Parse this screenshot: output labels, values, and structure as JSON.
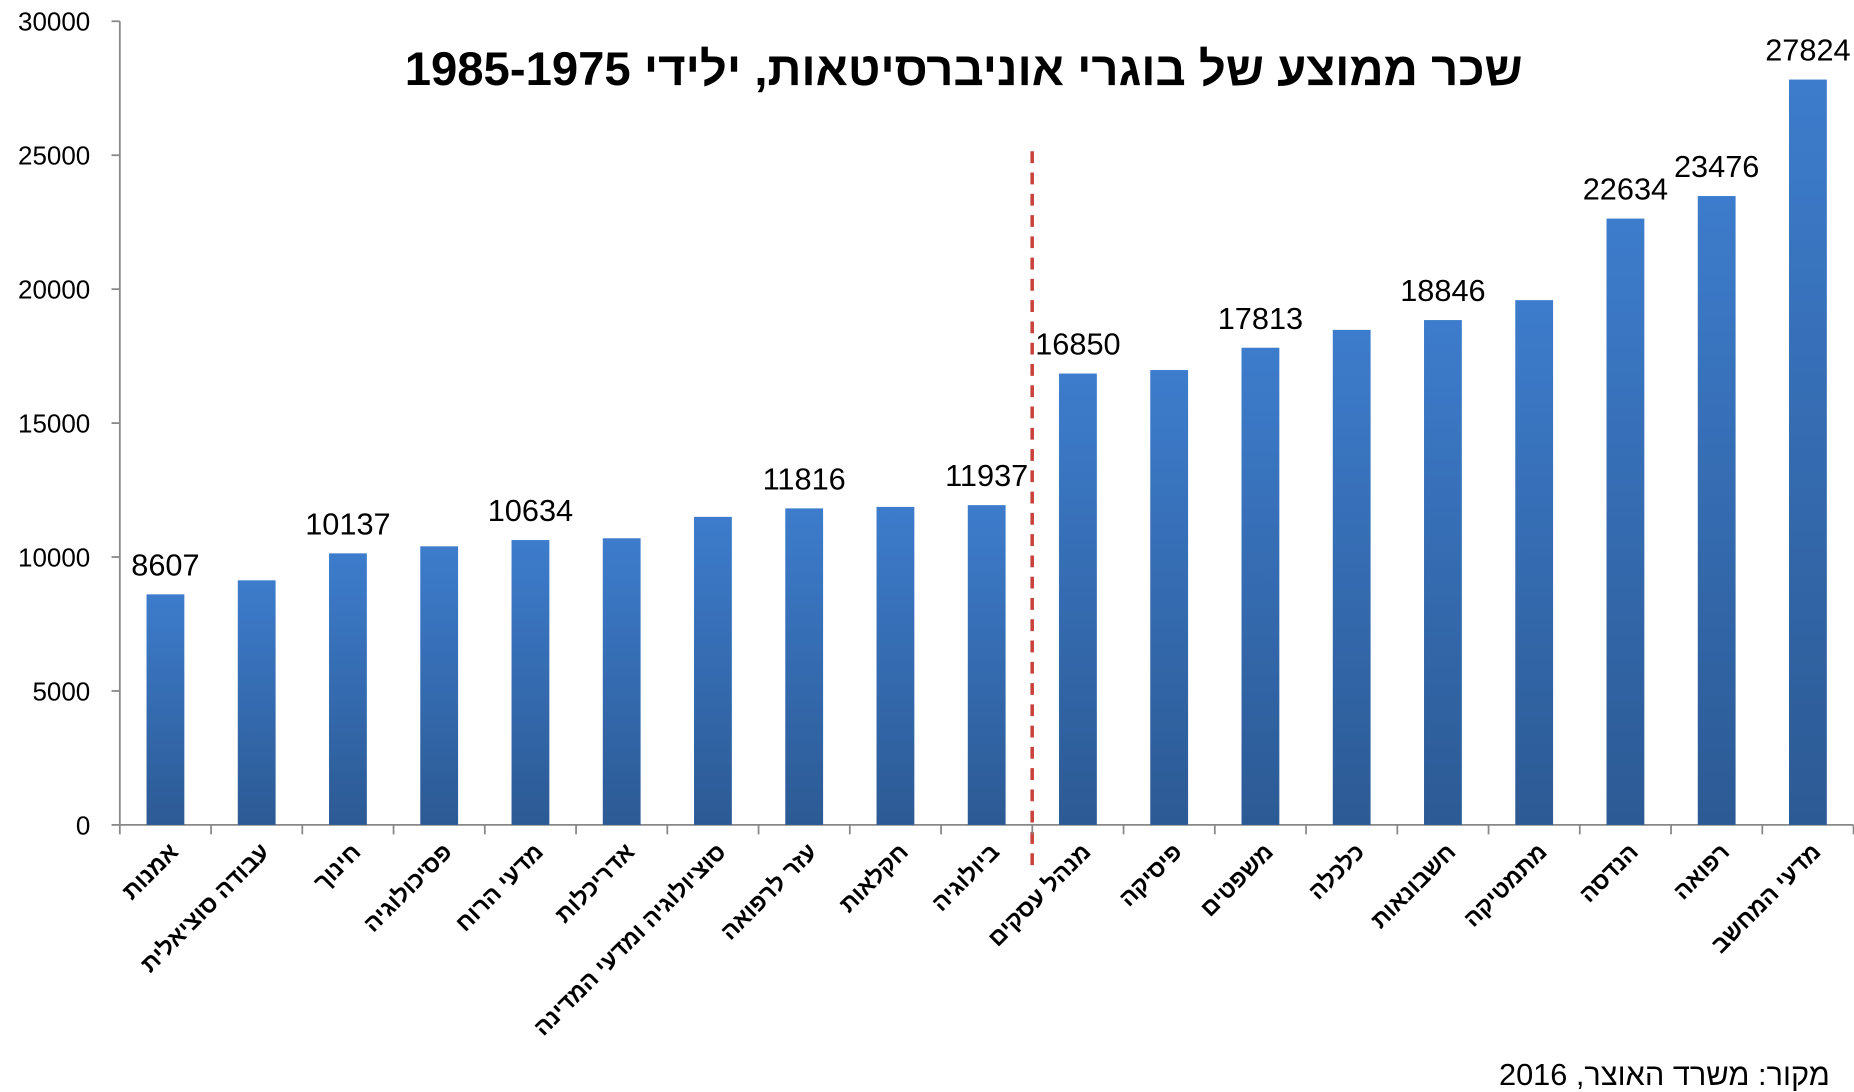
{
  "chart_data": {
    "type": "bar",
    "title": "שכר ממוצע של בוגרי אוניברסיטאות, ילידי 1985-1975",
    "source": "מקור: משרד האוצר, 2016",
    "categories": [
      "אמנות",
      "עבודה סוציאלית",
      "חינוך",
      "פסיכולוגיה",
      "מדעי הרוח",
      "אדריכלות",
      "סוציולוגיה ומדעי המדינה",
      "עזר לרפואה",
      "חקלאות",
      "ביולוגיה",
      "מנהל עסקים",
      "פיסיקה",
      "משפטים",
      "כלכלה",
      "חשבונאות",
      "מתמטיקה",
      "הנדסה",
      "רפואה",
      "מדעי המחשב"
    ],
    "values": [
      8607,
      9130,
      10137,
      10400,
      10634,
      10700,
      11500,
      11816,
      11870,
      11937,
      16850,
      16980,
      17813,
      18480,
      18846,
      19590,
      22634,
      23476,
      27824
    ],
    "value_labels": [
      "8607",
      null,
      "10137",
      null,
      "10634",
      null,
      null,
      "11816",
      null,
      "11937",
      "16850",
      null,
      "17813",
      null,
      "18846",
      null,
      "22634",
      "23476",
      "27824"
    ],
    "color": "#3d7ccc",
    "ylim": [
      0,
      30000
    ],
    "yticks": [
      0,
      5000,
      10000,
      15000,
      20000,
      25000,
      30000
    ],
    "grid": false
  }
}
